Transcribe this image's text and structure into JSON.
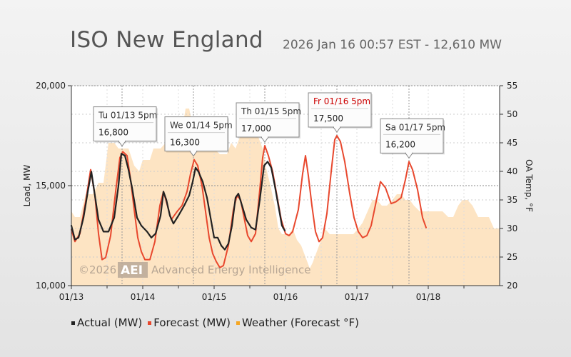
{
  "header": {
    "title": "ISO New England",
    "subtitle": "2026 Jan 16 00:57 EST - 12,610 MW"
  },
  "watermark": {
    "year_text": "©2026",
    "logo_text": "AEI",
    "company_text": "Advanced Energy Intelligence"
  },
  "legend": [
    {
      "label": "Actual (MW)",
      "color": "#222222"
    },
    {
      "label": "Forecast (MW)",
      "color": "#e8482e"
    },
    {
      "label": "Weather (Forecast °F)",
      "color": "#f5a623"
    }
  ],
  "chart_data": {
    "type": "line",
    "x_ticks": [
      "01/13",
      "01/14",
      "01/15",
      "01/16",
      "01/17",
      "01/18"
    ],
    "x_tick_days": [
      0,
      1,
      2,
      3,
      4,
      5
    ],
    "x_domain_days": [
      0,
      6
    ],
    "ylabel": "Load, MW",
    "ylim": [
      10000,
      20000
    ],
    "y_ticks": [
      10000,
      15000,
      20000
    ],
    "y_tick_labels": [
      "10,000",
      "15,000",
      "20,000"
    ],
    "y2label": "OA Temp, °F",
    "y2lim": [
      20,
      55
    ],
    "y2_ticks": [
      20,
      25,
      30,
      35,
      40,
      45,
      50,
      55
    ],
    "series": [
      {
        "name": "Actual (MW)",
        "color": "#222222",
        "axis": "left",
        "points": [
          [
            0.0,
            13000
          ],
          [
            0.05,
            12300
          ],
          [
            0.1,
            12400
          ],
          [
            0.17,
            13400
          ],
          [
            0.23,
            14700
          ],
          [
            0.28,
            15700
          ],
          [
            0.33,
            14500
          ],
          [
            0.38,
            13300
          ],
          [
            0.45,
            12700
          ],
          [
            0.52,
            12700
          ],
          [
            0.6,
            13400
          ],
          [
            0.66,
            15000
          ],
          [
            0.7,
            16600
          ],
          [
            0.75,
            16500
          ],
          [
            0.8,
            15800
          ],
          [
            0.85,
            14900
          ],
          [
            0.92,
            13400
          ],
          [
            0.98,
            13000
          ],
          [
            1.06,
            12700
          ],
          [
            1.12,
            12400
          ],
          [
            1.18,
            12600
          ],
          [
            1.25,
            13500
          ],
          [
            1.29,
            14700
          ],
          [
            1.33,
            14300
          ],
          [
            1.38,
            13500
          ],
          [
            1.43,
            13100
          ],
          [
            1.5,
            13500
          ],
          [
            1.58,
            14000
          ],
          [
            1.65,
            14500
          ],
          [
            1.7,
            15200
          ],
          [
            1.74,
            15900
          ],
          [
            1.78,
            15700
          ],
          [
            1.84,
            15200
          ],
          [
            1.9,
            14400
          ],
          [
            1.95,
            13400
          ],
          [
            2.0,
            12400
          ],
          [
            2.05,
            12400
          ],
          [
            2.1,
            12000
          ],
          [
            2.15,
            11800
          ],
          [
            2.2,
            12100
          ],
          [
            2.25,
            13000
          ],
          [
            2.3,
            14400
          ],
          [
            2.34,
            14600
          ],
          [
            2.4,
            13900
          ],
          [
            2.45,
            13300
          ],
          [
            2.52,
            12900
          ],
          [
            2.58,
            12800
          ],
          [
            2.64,
            14300
          ],
          [
            2.7,
            16000
          ],
          [
            2.75,
            16200
          ],
          [
            2.8,
            15900
          ],
          [
            2.85,
            15000
          ],
          [
            2.9,
            14000
          ],
          [
            2.95,
            13000
          ],
          [
            2.99,
            12750
          ]
        ]
      },
      {
        "name": "Forecast (MW)",
        "color": "#e8482e",
        "axis": "left",
        "points": [
          [
            0.0,
            12800
          ],
          [
            0.05,
            12200
          ],
          [
            0.12,
            12600
          ],
          [
            0.2,
            14200
          ],
          [
            0.27,
            15800
          ],
          [
            0.33,
            14500
          ],
          [
            0.38,
            12600
          ],
          [
            0.43,
            11300
          ],
          [
            0.48,
            11400
          ],
          [
            0.55,
            12500
          ],
          [
            0.62,
            14700
          ],
          [
            0.68,
            16400
          ],
          [
            0.72,
            16700
          ],
          [
            0.78,
            16500
          ],
          [
            0.83,
            15300
          ],
          [
            0.88,
            13800
          ],
          [
            0.93,
            12400
          ],
          [
            0.98,
            11700
          ],
          [
            1.03,
            11300
          ],
          [
            1.1,
            11300
          ],
          [
            1.17,
            12200
          ],
          [
            1.24,
            14000
          ],
          [
            1.29,
            14700
          ],
          [
            1.33,
            14200
          ],
          [
            1.4,
            13300
          ],
          [
            1.48,
            13700
          ],
          [
            1.55,
            14000
          ],
          [
            1.62,
            14700
          ],
          [
            1.67,
            15600
          ],
          [
            1.72,
            16300
          ],
          [
            1.77,
            16000
          ],
          [
            1.83,
            15000
          ],
          [
            1.88,
            13700
          ],
          [
            1.93,
            12400
          ],
          [
            1.98,
            11600
          ],
          [
            2.03,
            11200
          ],
          [
            2.08,
            10900
          ],
          [
            2.13,
            11000
          ],
          [
            2.2,
            12000
          ],
          [
            2.27,
            13800
          ],
          [
            2.32,
            14500
          ],
          [
            2.37,
            14300
          ],
          [
            2.42,
            13400
          ],
          [
            2.47,
            12500
          ],
          [
            2.52,
            12200
          ],
          [
            2.58,
            12600
          ],
          [
            2.64,
            14800
          ],
          [
            2.68,
            16400
          ],
          [
            2.71,
            17000
          ],
          [
            2.76,
            16500
          ],
          [
            2.82,
            15700
          ],
          [
            2.88,
            14500
          ],
          [
            2.94,
            13300
          ],
          [
            3.0,
            12600
          ],
          [
            3.05,
            12500
          ],
          [
            3.1,
            12700
          ],
          [
            3.18,
            13800
          ],
          [
            3.24,
            15600
          ],
          [
            3.28,
            16500
          ],
          [
            3.32,
            15500
          ],
          [
            3.37,
            14000
          ],
          [
            3.42,
            12700
          ],
          [
            3.47,
            12200
          ],
          [
            3.52,
            12400
          ],
          [
            3.58,
            13600
          ],
          [
            3.64,
            15700
          ],
          [
            3.69,
            17300
          ],
          [
            3.72,
            17500
          ],
          [
            3.77,
            17200
          ],
          [
            3.83,
            16200
          ],
          [
            3.9,
            14600
          ],
          [
            3.96,
            13400
          ],
          [
            4.02,
            12700
          ],
          [
            4.08,
            12400
          ],
          [
            4.14,
            12500
          ],
          [
            4.2,
            13000
          ],
          [
            4.27,
            14200
          ],
          [
            4.33,
            15200
          ],
          [
            4.4,
            14900
          ],
          [
            4.48,
            14100
          ],
          [
            4.55,
            14200
          ],
          [
            4.62,
            14400
          ],
          [
            4.68,
            15300
          ],
          [
            4.73,
            16200
          ],
          [
            4.78,
            15800
          ],
          [
            4.85,
            14800
          ],
          [
            4.92,
            13400
          ],
          [
            4.97,
            12900
          ]
        ]
      },
      {
        "name": "Weather (Forecast °F)",
        "color": "#f5a623",
        "axis": "right",
        "points": [
          [
            0.0,
            33
          ],
          [
            0.05,
            32
          ],
          [
            0.12,
            32
          ],
          [
            0.2,
            36
          ],
          [
            0.3,
            36
          ],
          [
            0.38,
            38
          ],
          [
            0.45,
            38
          ],
          [
            0.52,
            45
          ],
          [
            0.6,
            45
          ],
          [
            0.66,
            44
          ],
          [
            0.72,
            44
          ],
          [
            0.8,
            44
          ],
          [
            0.88,
            41
          ],
          [
            0.95,
            40
          ],
          [
            1.0,
            42
          ],
          [
            1.05,
            42
          ],
          [
            1.1,
            42
          ],
          [
            1.15,
            44
          ],
          [
            1.25,
            44
          ],
          [
            1.32,
            45
          ],
          [
            1.38,
            45
          ],
          [
            1.45,
            45
          ],
          [
            1.5,
            47
          ],
          [
            1.55,
            47
          ],
          [
            1.6,
            51
          ],
          [
            1.65,
            51
          ],
          [
            1.7,
            48
          ],
          [
            1.78,
            48
          ],
          [
            1.84,
            46
          ],
          [
            1.9,
            44
          ],
          [
            1.95,
            44
          ],
          [
            2.0,
            44
          ],
          [
            2.08,
            43
          ],
          [
            2.13,
            43
          ],
          [
            2.18,
            43
          ],
          [
            2.24,
            45
          ],
          [
            2.3,
            44
          ],
          [
            2.36,
            46
          ],
          [
            2.42,
            48
          ],
          [
            2.5,
            48
          ],
          [
            2.58,
            48
          ],
          [
            2.62,
            46
          ],
          [
            2.68,
            44
          ],
          [
            2.72,
            41
          ],
          [
            2.78,
            38
          ],
          [
            2.85,
            34
          ],
          [
            2.9,
            30
          ],
          [
            2.95,
            29
          ],
          [
            3.0,
            29
          ],
          [
            3.05,
            29
          ],
          [
            3.1,
            30
          ],
          [
            3.16,
            28
          ],
          [
            3.22,
            27
          ],
          [
            3.28,
            25
          ],
          [
            3.34,
            23
          ],
          [
            3.38,
            24
          ],
          [
            3.44,
            26
          ],
          [
            3.5,
            28
          ],
          [
            3.55,
            30
          ],
          [
            3.62,
            29
          ],
          [
            3.7,
            29
          ],
          [
            3.78,
            29
          ],
          [
            3.86,
            29
          ],
          [
            3.95,
            29
          ],
          [
            4.02,
            30
          ],
          [
            4.08,
            31
          ],
          [
            4.15,
            33
          ],
          [
            4.22,
            35
          ],
          [
            4.28,
            35
          ],
          [
            4.35,
            34
          ],
          [
            4.42,
            34
          ],
          [
            4.5,
            35
          ],
          [
            4.56,
            36
          ],
          [
            4.62,
            36
          ],
          [
            4.68,
            35
          ],
          [
            4.74,
            35
          ],
          [
            4.8,
            34
          ],
          [
            4.88,
            33
          ],
          [
            4.96,
            33
          ],
          [
            5.05,
            33
          ],
          [
            5.12,
            33
          ],
          [
            5.2,
            33
          ],
          [
            5.28,
            32
          ],
          [
            5.35,
            32
          ],
          [
            5.42,
            34
          ],
          [
            5.48,
            35
          ],
          [
            5.55,
            35
          ],
          [
            5.62,
            34
          ],
          [
            5.7,
            32
          ],
          [
            5.78,
            32
          ],
          [
            5.85,
            32
          ],
          [
            5.92,
            30
          ],
          [
            6.0,
            30
          ]
        ]
      }
    ],
    "annotations": [
      {
        "label": "Tu 01/13 5pm",
        "value_text": "16,800",
        "x": 0.71,
        "y": 16800,
        "label_color": "#333333"
      },
      {
        "label": "We 01/14 5pm",
        "value_text": "16,300",
        "x": 1.71,
        "y": 16300,
        "label_color": "#333333"
      },
      {
        "label": "Th 01/15 5pm",
        "value_text": "17,000",
        "x": 2.71,
        "y": 17000,
        "label_color": "#333333"
      },
      {
        "label": "Fr 01/16 5pm",
        "value_text": "17,500",
        "x": 3.72,
        "y": 17500,
        "label_color": "#cc0000"
      },
      {
        "label": "Sa 01/17 5pm",
        "value_text": "16,200",
        "x": 4.73,
        "y": 16200,
        "label_color": "#333333"
      }
    ]
  }
}
